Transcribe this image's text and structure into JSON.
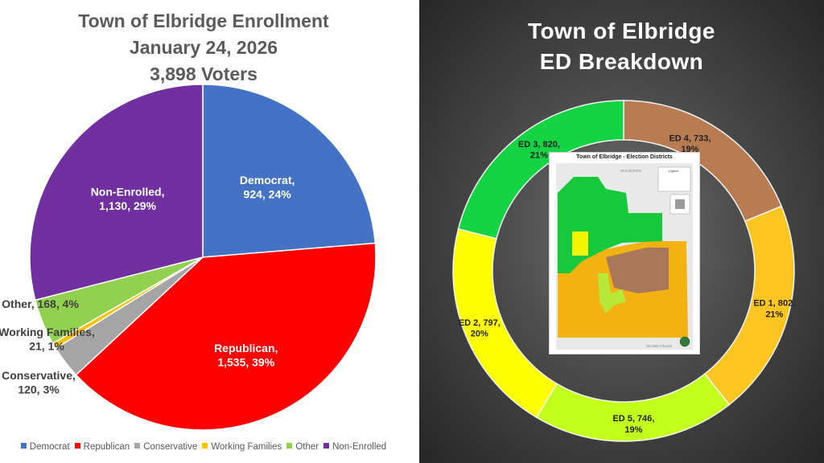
{
  "left_title": {
    "line1": "Town of Elbridge Enrollment",
    "line2": "January 24, 2026",
    "line3": "3,898 Voters"
  },
  "right_title": {
    "line1": "Town of Elbridge",
    "line2": "ED Breakdown"
  },
  "map_inset": {
    "title": "Town of Elbridge - Election Districts",
    "label_top": "VAN BUREN",
    "label_bottom": "SKANEATELES",
    "legend_title": "Legend"
  },
  "chart_data": [
    {
      "type": "pie",
      "title": "Town of Elbridge Enrollment January 24, 2026 3,898 Voters",
      "total": 3898,
      "categories": [
        "Democrat",
        "Republican",
        "Conservative",
        "Working Families",
        "Other",
        "Non-Enrolled"
      ],
      "values": [
        924,
        1535,
        120,
        21,
        168,
        1130
      ],
      "percents": [
        24,
        39,
        3,
        1,
        4,
        29
      ],
      "colors": [
        "#4472c4",
        "#ff0000",
        "#a5a5a5",
        "#ffc000",
        "#92d050",
        "#7030a0"
      ],
      "data_labels": [
        [
          "Democrat,",
          "924, 24%"
        ],
        [
          "Republican,",
          "1,535, 39%"
        ],
        [
          "Conservative,",
          "120, 3%"
        ],
        [
          "Working Families,",
          "21, 1%"
        ],
        [
          "Other, 168, 4%"
        ],
        [
          "Non-Enrolled,",
          "1,130, 29%"
        ]
      ],
      "legend": [
        "Democrat",
        "Republican",
        "Conservative",
        "Working Families",
        "Other",
        "Non-Enrolled"
      ],
      "legend_position": "bottom"
    },
    {
      "type": "pie",
      "subtype": "donut",
      "title": "Town of Elbridge ED Breakdown",
      "categories": [
        "ED 4",
        "ED 1",
        "ED 5",
        "ED 2",
        "ED 3"
      ],
      "values": [
        733,
        802,
        746,
        797,
        820
      ],
      "percents": [
        19,
        21,
        19,
        20,
        21
      ],
      "colors": [
        "#b97c52",
        "#ffc520",
        "#c3ff1c",
        "#ffff00",
        "#14d444"
      ],
      "data_labels": [
        [
          "ED 4, 733,",
          "19%"
        ],
        [
          "ED 1, 802,",
          "21%"
        ],
        [
          "ED 5, 746,",
          "19%"
        ],
        [
          "ED 2, 797,",
          "20%"
        ],
        [
          "ED 3, 820,",
          "21%"
        ]
      ]
    }
  ]
}
